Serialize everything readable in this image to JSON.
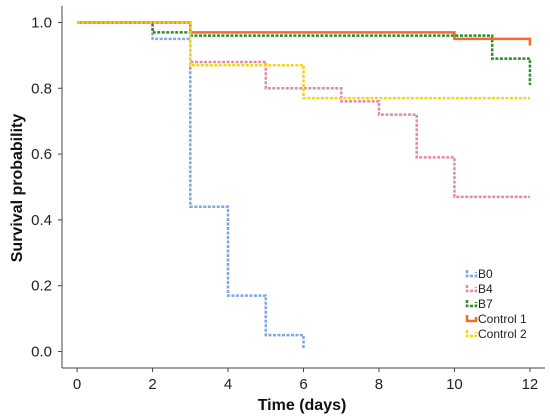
{
  "chart_data": {
    "type": "line",
    "step": true,
    "xlabel": "Time (days)",
    "ylabel": "Survival probability",
    "xlim": [
      -0.4,
      12.4
    ],
    "ylim": [
      -0.05,
      1.05
    ],
    "xticks": [
      0,
      2,
      4,
      6,
      8,
      10,
      12
    ],
    "yticks": [
      0.0,
      0.2,
      0.4,
      0.6,
      0.8,
      1.0
    ],
    "xtick_labels": [
      "0",
      "2",
      "4",
      "6",
      "8",
      "10",
      "12"
    ],
    "ytick_labels": [
      "0.0",
      "0.2",
      "0.4",
      "0.6",
      "0.8",
      "1.0"
    ],
    "grid": false,
    "legend_position": "bottom-right",
    "series": [
      {
        "name": "B0",
        "color": "#7fa7e3",
        "dash": "3,1.5",
        "points": [
          [
            0,
            1.0
          ],
          [
            2,
            0.95
          ],
          [
            3,
            0.44
          ],
          [
            4,
            0.17
          ],
          [
            5,
            0.05
          ],
          [
            6,
            0.01
          ]
        ]
      },
      {
        "name": "B4",
        "color": "#e58aa6",
        "dash": "3,1.5",
        "points": [
          [
            0,
            1.0
          ],
          [
            3,
            0.88
          ],
          [
            5,
            0.8
          ],
          [
            7,
            0.76
          ],
          [
            8,
            0.72
          ],
          [
            9,
            0.59
          ],
          [
            10,
            0.47
          ],
          [
            12,
            0.47
          ]
        ]
      },
      {
        "name": "B7",
        "color": "#2e8b2e",
        "dash": "3,1.5",
        "points": [
          [
            0,
            1.0
          ],
          [
            2,
            0.97
          ],
          [
            3,
            0.96
          ],
          [
            10,
            0.96
          ],
          [
            11,
            0.89
          ],
          [
            12,
            0.81
          ]
        ]
      },
      {
        "name": "Control 1",
        "color": "#f26a2e",
        "dash": "",
        "points": [
          [
            0,
            1.0
          ],
          [
            3,
            0.97
          ],
          [
            10,
            0.95
          ],
          [
            12,
            0.93
          ]
        ]
      },
      {
        "name": "Control 2",
        "color": "#f2d41e",
        "dash": "3,1.5",
        "points": [
          [
            0,
            1.0
          ],
          [
            3,
            0.87
          ],
          [
            6,
            0.77
          ],
          [
            12,
            0.77
          ]
        ]
      }
    ]
  }
}
